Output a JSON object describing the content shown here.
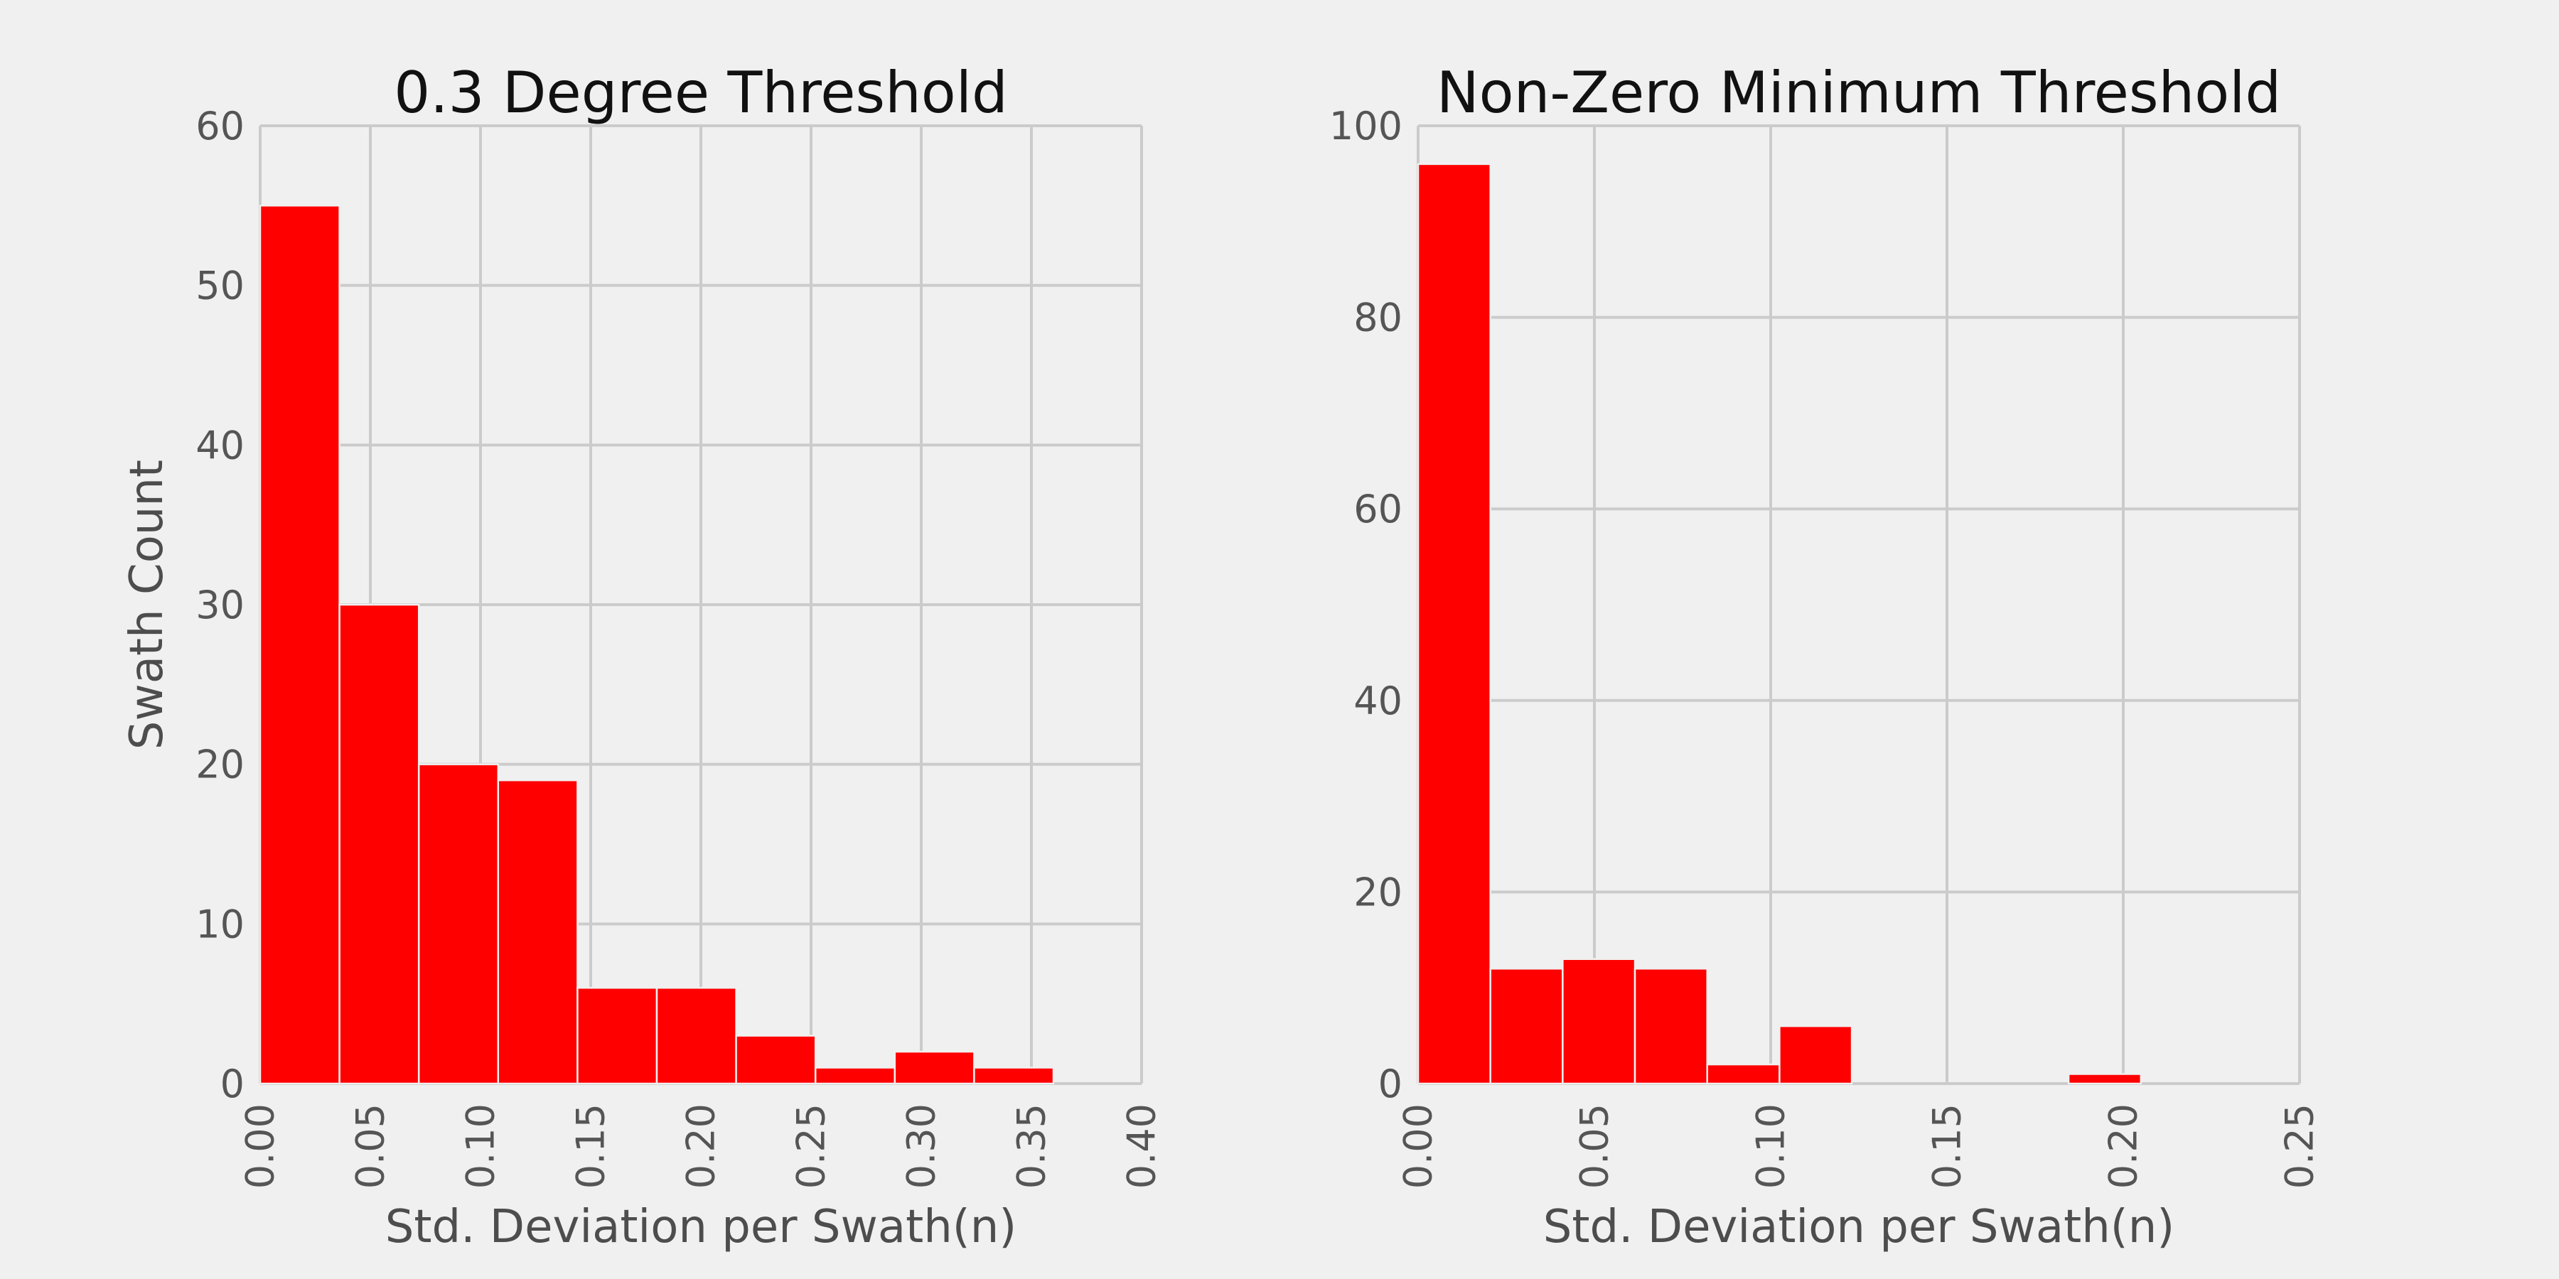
{
  "chart_data": [
    {
      "type": "bar",
      "title": "0.3 Degree Threshold",
      "xlabel": "Std. Deviation per Swath(n)",
      "ylabel": "Swath Count",
      "bin_edges": [
        0.0,
        0.036,
        0.072,
        0.108,
        0.144,
        0.18,
        0.216,
        0.252,
        0.288,
        0.324,
        0.36
      ],
      "values": [
        55,
        30,
        20,
        19,
        6,
        6,
        3,
        1,
        2,
        1
      ],
      "xlim": [
        0.0,
        0.4
      ],
      "ylim": [
        0,
        60
      ],
      "xticks": [
        "0.00",
        "0.05",
        "0.10",
        "0.15",
        "0.20",
        "0.25",
        "0.30",
        "0.35",
        "0.40"
      ],
      "yticks": [
        "0",
        "10",
        "20",
        "30",
        "40",
        "50",
        "60"
      ],
      "grid": true
    },
    {
      "type": "bar",
      "title": "Non-Zero Minimum Threshold",
      "xlabel": "Std. Deviation per Swath(n)",
      "ylabel": "",
      "bin_edges": [
        0.0,
        0.0205,
        0.041,
        0.0615,
        0.082,
        0.1025,
        0.123,
        0.1435,
        0.164,
        0.1845,
        0.205
      ],
      "values": [
        96,
        12,
        13,
        12,
        2,
        6,
        0,
        0,
        0,
        1
      ],
      "xlim": [
        0.0,
        0.25
      ],
      "ylim": [
        0,
        100
      ],
      "xticks": [
        "0.00",
        "0.05",
        "0.10",
        "0.15",
        "0.20",
        "0.25"
      ],
      "yticks": [
        "0",
        "20",
        "40",
        "60",
        "80",
        "100"
      ],
      "grid": true
    }
  ],
  "style": {
    "background": "#f0f0f0",
    "bar_color": "#ff0000",
    "bar_edge_color": "#f0f0f0",
    "grid_color": "#cbcbcb"
  }
}
